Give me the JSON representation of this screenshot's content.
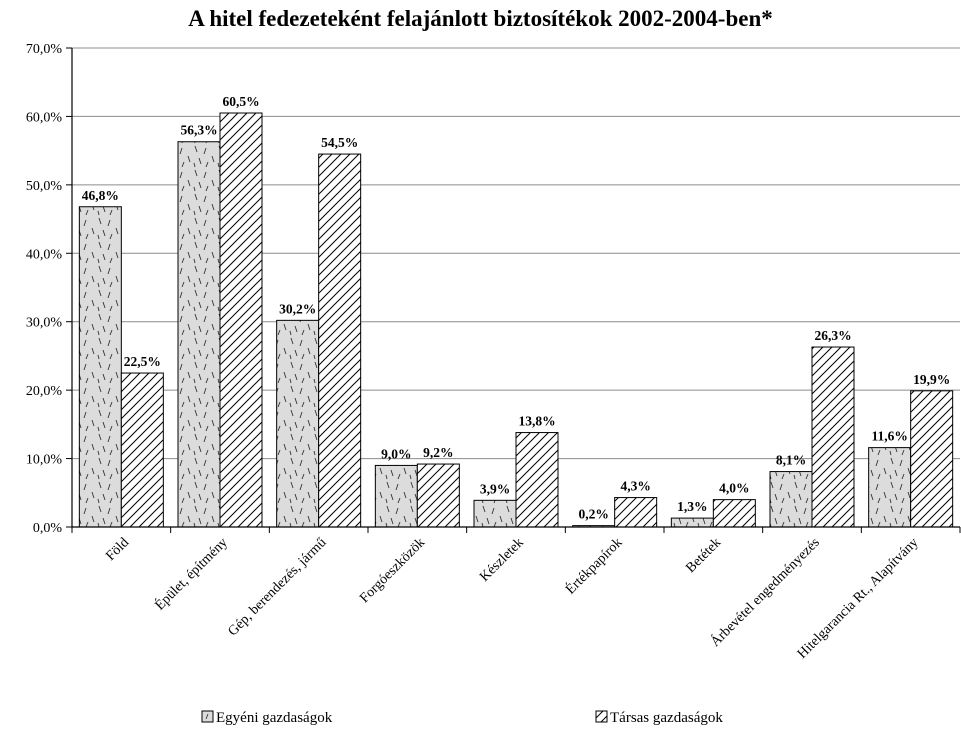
{
  "chart_data": {
    "type": "bar",
    "title": "A hitel fedezeteként felajánlott biztosítékok 2002-2004-ben*",
    "xlabel": "",
    "ylabel": "",
    "ylim": [
      0,
      70
    ],
    "yticks": [
      0,
      10,
      20,
      30,
      40,
      50,
      60,
      70
    ],
    "ytick_labels": [
      "0,0%",
      "10,0%",
      "20,0%",
      "30,0%",
      "40,0%",
      "50,0%",
      "60,0%",
      "70,0%"
    ],
    "grid": true,
    "legend_position": "bottom",
    "categories": [
      "Föld",
      "Épület, építmény",
      "Gép, berendezés, jármű",
      "Forgóeszközök",
      "Készletek",
      "Értékpapírok",
      "Betétek",
      "Árbevétel engedményezés",
      "Hitelgarancia Rt., Alapítvány"
    ],
    "series": [
      {
        "name": "Egyéni gazdaságok",
        "pattern": "dashes",
        "fill": "#dcdcdc",
        "values": [
          46.8,
          56.3,
          30.2,
          9.0,
          3.9,
          0.2,
          1.3,
          8.1,
          11.6
        ],
        "labels": [
          "46,8%",
          "56,3%",
          "30,2%",
          "9,0%",
          "3,9%",
          "0,2%",
          "1,3%",
          "8,1%",
          "11,6%"
        ]
      },
      {
        "name": "Társas gazdaságok",
        "pattern": "diagonal",
        "fill": "#ffffff",
        "values": [
          22.5,
          60.5,
          54.5,
          9.2,
          13.8,
          4.3,
          4.0,
          26.3,
          19.9
        ],
        "labels": [
          "22,5%",
          "60,5%",
          "54,5%",
          "9,2%",
          "13,8%",
          "4,3%",
          "4,0%",
          "26,3%",
          "19,9%"
        ]
      }
    ]
  }
}
